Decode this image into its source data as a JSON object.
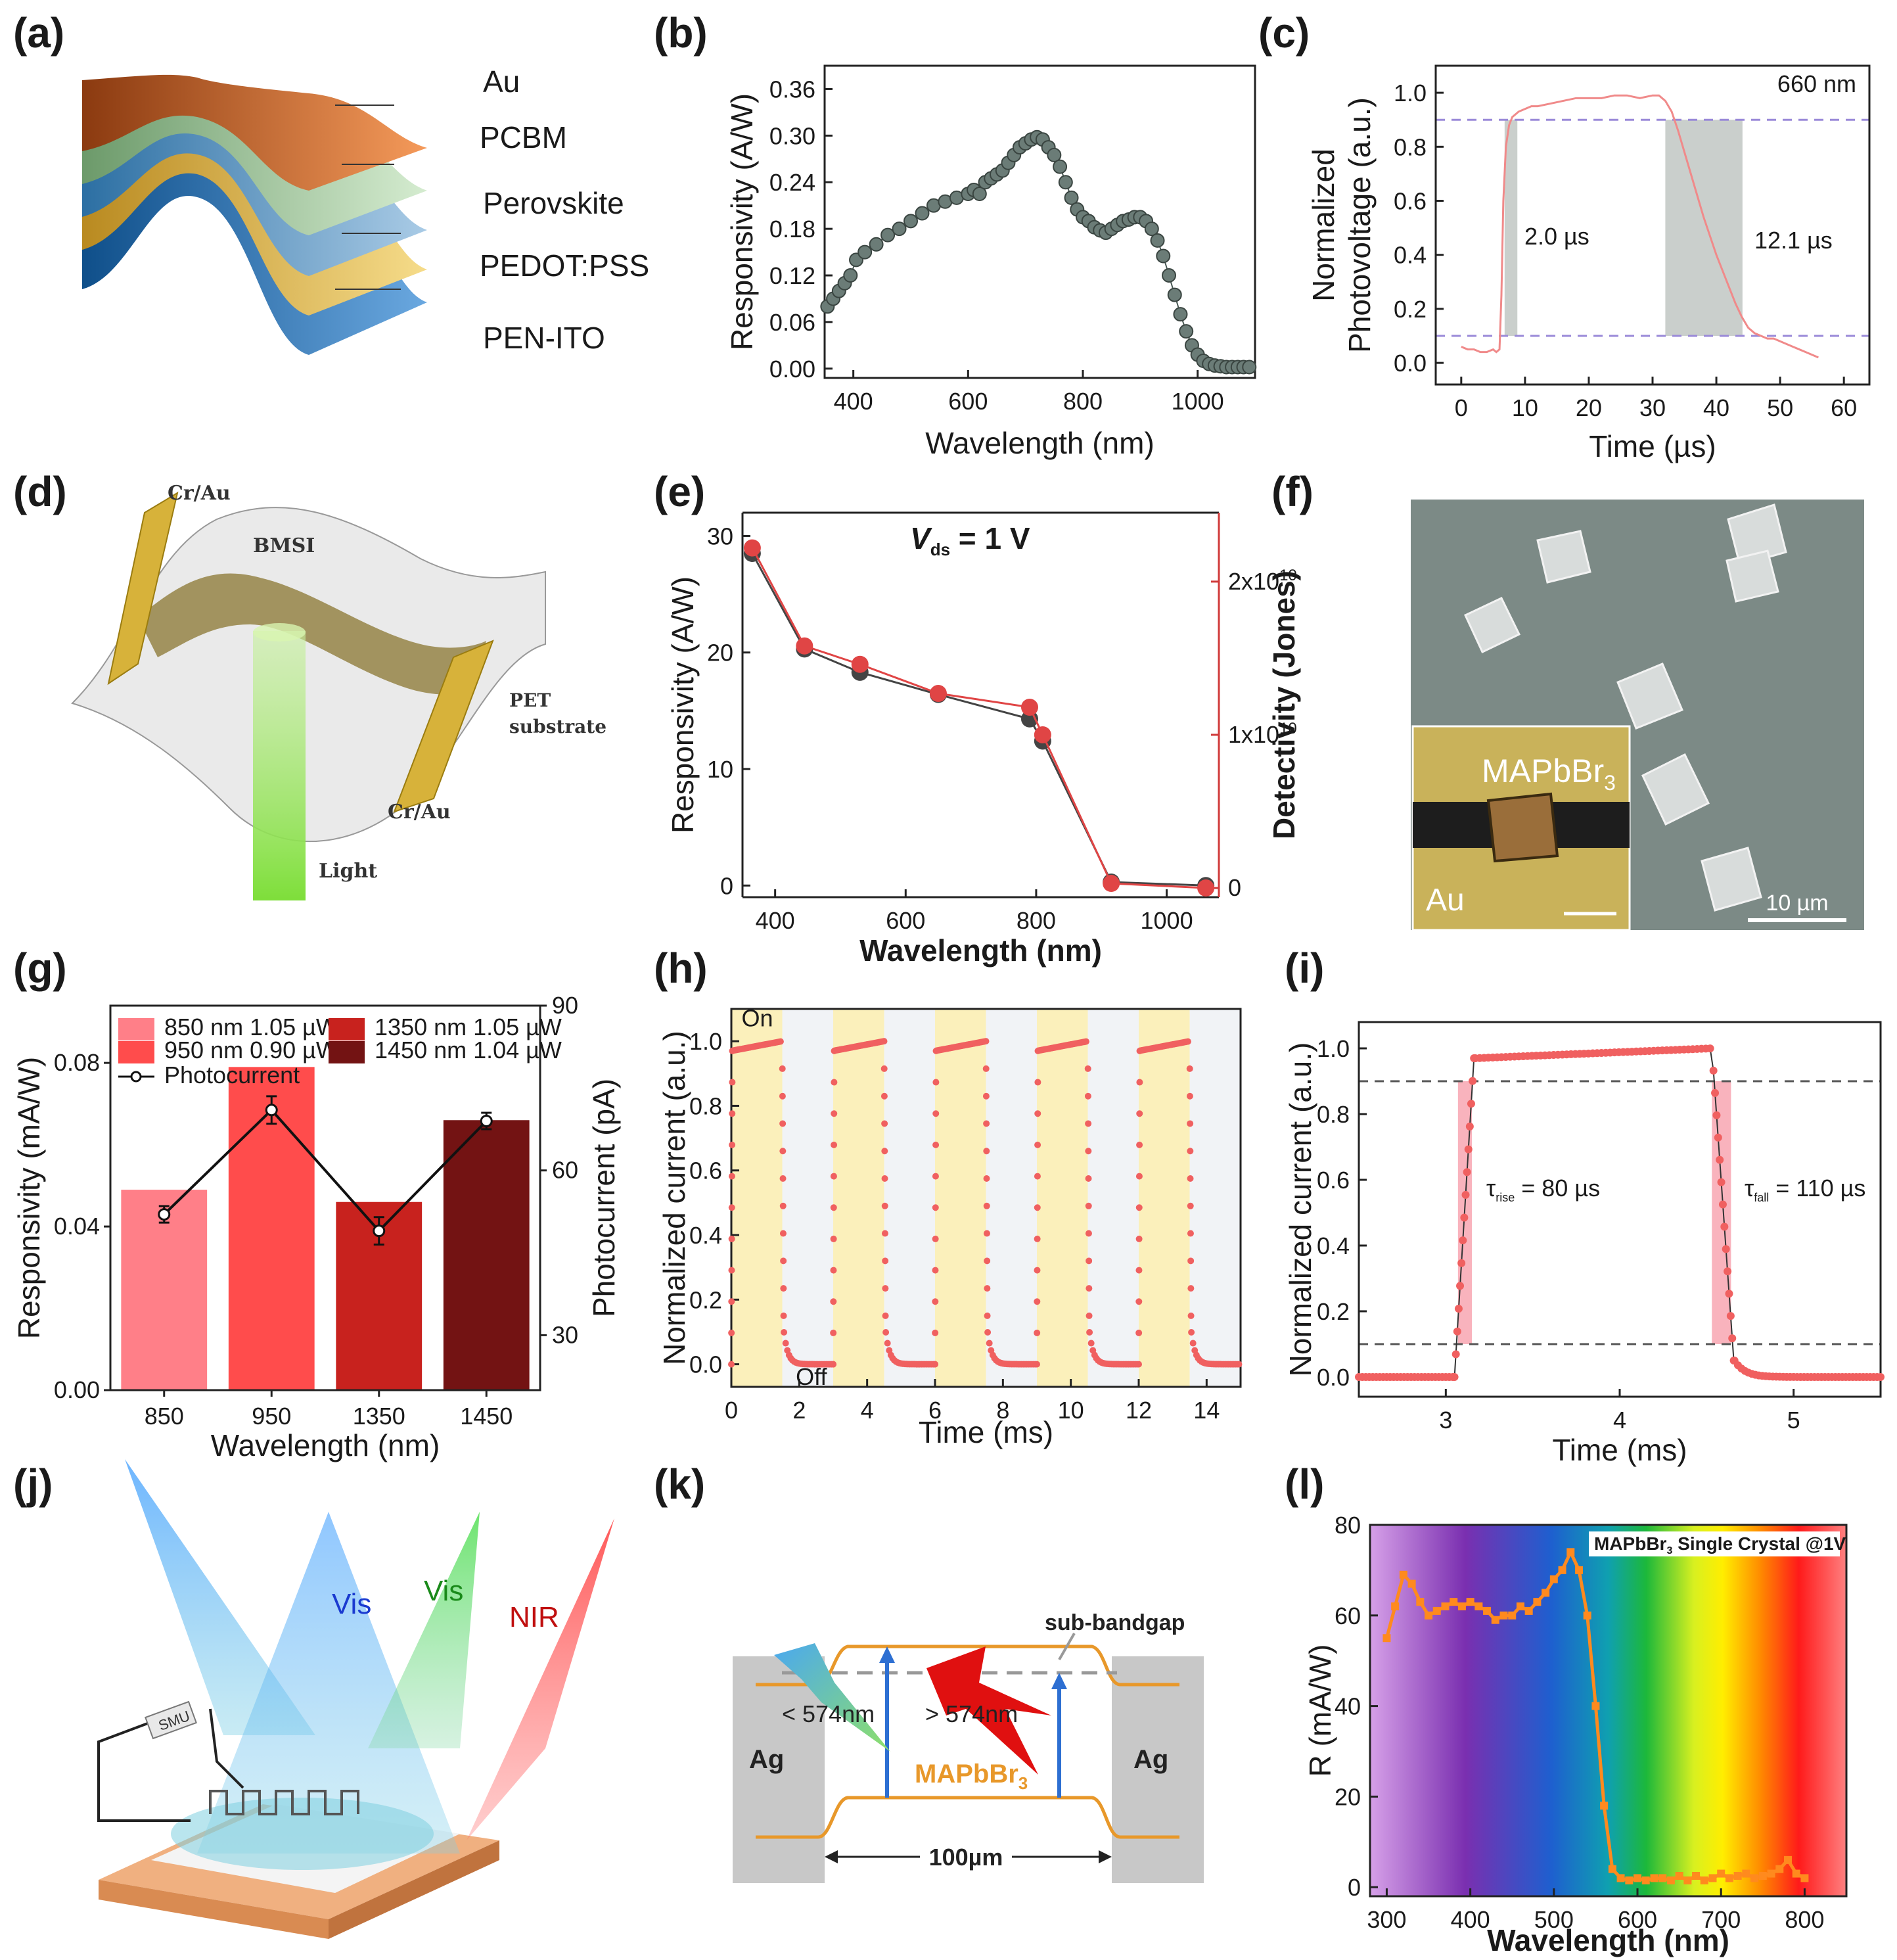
{
  "panels": {
    "a": {
      "label": "(a)",
      "layers": [
        "Au",
        "PCBM",
        "Perovskite",
        "PEDOT:PSS",
        "PEN-ITO"
      ]
    },
    "b": {
      "label": "(b)"
    },
    "c": {
      "label": "(c)"
    },
    "d": {
      "label": "(d)",
      "labels": {
        "cr_top": "Cr/Au",
        "bmsi": "BMSI",
        "pet": "PET",
        "substrate": "substrate",
        "cr_bottom": "Cr/Au",
        "light": "Light"
      }
    },
    "e": {
      "label": "(e)"
    },
    "f": {
      "label": "(f)",
      "inset_text": "MAPbBr",
      "inset_sub": "3",
      "au": "Au",
      "scale": "10 µm"
    },
    "g": {
      "label": "(g)"
    },
    "h": {
      "label": "(h)"
    },
    "i": {
      "label": "(i)"
    },
    "j": {
      "label": "(j)",
      "smu": "SMU",
      "beams": [
        "Vis",
        "Vis",
        "NIR"
      ]
    },
    "k": {
      "label": "(k)",
      "subbandgap": "sub-bandgap",
      "lt": "< 574nm",
      "gt": "> 574nm",
      "material": "MAPbBr",
      "material_sub": "3",
      "ag_left": "Ag",
      "ag_right": "Ag",
      "width": "100µm"
    },
    "l": {
      "label": "(l)"
    }
  },
  "chart_data": [
    {
      "id": "b",
      "type": "scatter",
      "xlabel": "Wavelength (nm)",
      "ylabel": "Responsivity (A/W)",
      "xlim": [
        350,
        1100
      ],
      "ylim": [
        -0.012,
        0.39
      ],
      "xticks": [
        400,
        600,
        800,
        1000
      ],
      "yticks": [
        "0.00",
        "0.06",
        "0.12",
        "0.18",
        "0.24",
        "0.30",
        "0.36"
      ],
      "x": [
        355,
        365,
        375,
        385,
        395,
        405,
        420,
        440,
        460,
        480,
        500,
        520,
        540,
        560,
        580,
        600,
        610,
        620,
        630,
        640,
        650,
        660,
        670,
        680,
        690,
        700,
        710,
        720,
        730,
        740,
        750,
        760,
        770,
        780,
        790,
        800,
        810,
        820,
        830,
        840,
        850,
        860,
        870,
        880,
        890,
        900,
        910,
        920,
        930,
        940,
        950,
        960,
        970,
        980,
        990,
        1000,
        1010,
        1020,
        1030,
        1040,
        1050,
        1060,
        1070,
        1080,
        1090
      ],
      "y": [
        0.08,
        0.09,
        0.1,
        0.11,
        0.12,
        0.14,
        0.15,
        0.16,
        0.172,
        0.18,
        0.19,
        0.2,
        0.21,
        0.215,
        0.22,
        0.225,
        0.23,
        0.225,
        0.24,
        0.245,
        0.25,
        0.255,
        0.265,
        0.275,
        0.285,
        0.29,
        0.295,
        0.298,
        0.295,
        0.285,
        0.275,
        0.26,
        0.24,
        0.22,
        0.205,
        0.195,
        0.19,
        0.182,
        0.178,
        0.175,
        0.18,
        0.185,
        0.19,
        0.192,
        0.195,
        0.195,
        0.19,
        0.18,
        0.165,
        0.145,
        0.12,
        0.095,
        0.07,
        0.048,
        0.03,
        0.018,
        0.01,
        0.006,
        0.004,
        0.003,
        0.002,
        0.002,
        0.002,
        0.002,
        0.002
      ]
    },
    {
      "id": "c",
      "type": "line",
      "xlabel": "Time (µs)",
      "ylabel_line1": "Normalized",
      "ylabel_line2": "Photovoltage (a.u.)",
      "xlim": [
        -4,
        64
      ],
      "ylim": [
        -0.08,
        1.1
      ],
      "xticks": [
        0,
        10,
        20,
        30,
        40,
        50,
        60
      ],
      "yticks": [
        "0.0",
        "0.2",
        "0.4",
        "0.6",
        "0.8",
        "1.0"
      ],
      "wavelength_label": "660 nm",
      "rise_label": "2.0 µs",
      "fall_label": "12.1 µs",
      "thresholds": [
        0.1,
        0.9
      ],
      "rise_band": [
        6.8,
        8.8
      ],
      "fall_band": [
        32.0,
        44.1
      ],
      "x": [
        0,
        1,
        2,
        3,
        4,
        5,
        5.5,
        6,
        6.3,
        6.6,
        7,
        7.5,
        8,
        8.5,
        9,
        10,
        11,
        12,
        14,
        16,
        18,
        20,
        22,
        24,
        26,
        28,
        30,
        31,
        32,
        33,
        34,
        35,
        36,
        37,
        38,
        39,
        40,
        41,
        42,
        43,
        44,
        45,
        46,
        47,
        48,
        49,
        50,
        51,
        52,
        53,
        54,
        55,
        56
      ],
      "y": [
        0.06,
        0.05,
        0.05,
        0.04,
        0.04,
        0.05,
        0.04,
        0.05,
        0.25,
        0.6,
        0.8,
        0.88,
        0.91,
        0.92,
        0.93,
        0.94,
        0.95,
        0.95,
        0.96,
        0.97,
        0.98,
        0.98,
        0.98,
        0.99,
        0.99,
        0.98,
        0.99,
        0.99,
        0.97,
        0.93,
        0.86,
        0.78,
        0.7,
        0.62,
        0.54,
        0.47,
        0.4,
        0.34,
        0.28,
        0.22,
        0.17,
        0.13,
        0.11,
        0.1,
        0.09,
        0.09,
        0.08,
        0.07,
        0.06,
        0.05,
        0.04,
        0.03,
        0.02
      ]
    },
    {
      "id": "e",
      "type": "line",
      "xlabel": "Wavelength (nm)",
      "ylabel": "Responsivity (A/W)",
      "ylabel_right": "Detectivity (Jones)",
      "annotation": "V",
      "annotation_sub": "ds",
      "annotation_tail": " = 1 V",
      "xlim": [
        350,
        1080
      ],
      "ylim": [
        -1,
        32
      ],
      "xticks": [
        400,
        600,
        800,
        1000
      ],
      "yticks": [
        0,
        10,
        20,
        30
      ],
      "ylim_right": [
        -0.06,
        2.45
      ],
      "yticks_right_base": "2x10",
      "yticks_right_exp": "10",
      "yticks_right": [
        {
          "v": 0,
          "t": "0"
        },
        {
          "v": 1,
          "t": "1x10"
        },
        {
          "v": 2,
          "t": "2x10"
        }
      ],
      "series": [
        {
          "name": "Responsivity",
          "axis": "left",
          "x": [
            365,
            445,
            530,
            650,
            790,
            810,
            915,
            1060
          ],
          "values": [
            28.5,
            20.3,
            18.3,
            16.4,
            14.3,
            12.4,
            0.3,
            0.0
          ]
        },
        {
          "name": "Detectivity",
          "axis": "right",
          "x": [
            365,
            445,
            530,
            650,
            790,
            810,
            915,
            1060
          ],
          "values": [
            2.22,
            1.58,
            1.46,
            1.27,
            1.18,
            1.0,
            0.03,
            0.0
          ]
        }
      ]
    },
    {
      "id": "g",
      "type": "bar",
      "xlabel": "Wavelength (nm)",
      "ylabel": "Responsivity (mA/W)",
      "ylabel_right": "Photocurrent (pA)",
      "categories": [
        "850",
        "950",
        "1350",
        "1450"
      ],
      "values": [
        0.049,
        0.079,
        0.046,
        0.066
      ],
      "colors": [
        "#ff7f88",
        "#ff4c4c",
        "#c8221e",
        "#731313"
      ],
      "legend": [
        "850 nm 1.05 µW",
        "950 nm 0.90 µW",
        "1350 nm 1.05 µW",
        "1450 nm 1.04 µW",
        "Photocurrent"
      ],
      "ylim": [
        0,
        0.094
      ],
      "yticks": [
        "0.00",
        "0.04",
        "0.08"
      ],
      "ylim_right": [
        20,
        90
      ],
      "yticks_right": [
        "30",
        "60",
        "90"
      ],
      "photocurrent": [
        52,
        71,
        49,
        69
      ],
      "photocurrent_err": [
        1.5,
        2.5,
        2.5,
        1.5
      ]
    },
    {
      "id": "h",
      "type": "scatter",
      "xlabel": "Time (ms)",
      "ylabel": "Normalized current (a.u.)",
      "xlim": [
        0,
        15
      ],
      "ylim": [
        -0.07,
        1.1
      ],
      "xticks": [
        0,
        2,
        4,
        6,
        8,
        10,
        12,
        14
      ],
      "yticks": [
        "0.0",
        "0.2",
        "0.4",
        "0.6",
        "0.8",
        "1.0"
      ],
      "on_label": "On",
      "off_label": "Off",
      "on_intervals": [
        [
          0,
          1.5
        ],
        [
          3,
          4.5
        ],
        [
          6,
          7.5
        ],
        [
          9,
          10.5
        ],
        [
          12,
          13.5
        ]
      ]
    },
    {
      "id": "i",
      "type": "scatter",
      "xlabel": "Time (ms)",
      "ylabel": "Normalized current (a.u.)",
      "xlim": [
        2.5,
        5.5
      ],
      "ylim": [
        -0.06,
        1.08
      ],
      "xticks": [
        3,
        4,
        5
      ],
      "yticks": [
        "0.0",
        "0.2",
        "0.4",
        "0.6",
        "0.8",
        "1.0"
      ],
      "thresholds": [
        0.1,
        0.9
      ],
      "rise_band": [
        3.07,
        3.15
      ],
      "fall_band": [
        4.53,
        4.64
      ],
      "rise_label": "τ",
      "rise_sub": "rise",
      "rise_value": " = 80 µs",
      "fall_label": "τ",
      "fall_sub": "fall",
      "fall_value": " = 110 µs"
    },
    {
      "id": "l",
      "type": "line",
      "xlabel": "Wavelength (nm)",
      "ylabel": "R (mA/W)",
      "xlim": [
        280,
        850
      ],
      "ylim": [
        -2,
        80
      ],
      "xticks": [
        300,
        400,
        500,
        600,
        700,
        800
      ],
      "yticks": [
        0,
        20,
        40,
        60,
        80
      ],
      "legend": "MAPbBr",
      "legend_sub": "3",
      "legend_tail": " Single Crystal @1V",
      "x": [
        300,
        310,
        320,
        330,
        340,
        350,
        360,
        370,
        380,
        390,
        400,
        410,
        420,
        430,
        440,
        450,
        460,
        470,
        480,
        490,
        500,
        510,
        520,
        530,
        540,
        550,
        560,
        570,
        580,
        590,
        600,
        610,
        620,
        630,
        640,
        650,
        660,
        670,
        680,
        690,
        700,
        710,
        720,
        730,
        740,
        750,
        760,
        770,
        780,
        790,
        800
      ],
      "y": [
        55,
        62,
        69,
        67,
        63,
        60,
        61,
        62,
        63,
        62,
        63,
        62,
        61,
        59,
        60,
        60,
        62,
        61,
        63,
        65,
        68,
        70,
        74,
        70,
        60,
        40,
        18,
        4,
        2,
        1.5,
        2,
        1.5,
        2,
        2,
        1.5,
        2.5,
        1.5,
        2.5,
        1.5,
        2,
        3,
        2,
        2.5,
        3,
        2,
        2.5,
        3,
        4,
        6,
        3,
        2
      ]
    }
  ]
}
